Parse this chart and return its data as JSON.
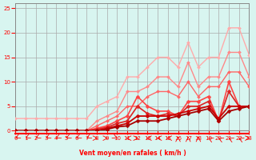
{
  "xlabel": "Vent moyen/en rafales ( km/h )",
  "ylabel": "",
  "bg_color": "#d8f5f0",
  "grid_color": "#aaaaaa",
  "xlim": [
    0,
    23
  ],
  "ylim": [
    0,
    26
  ],
  "xticks": [
    0,
    1,
    2,
    3,
    4,
    5,
    6,
    7,
    8,
    9,
    10,
    11,
    12,
    13,
    14,
    15,
    16,
    17,
    18,
    19,
    20,
    21,
    22,
    23
  ],
  "yticks": [
    0,
    5,
    10,
    15,
    20,
    25
  ],
  "lines": [
    {
      "color": "#ffaaaa",
      "alpha": 1.0,
      "lw": 1.0,
      "marker": "D",
      "markersize": 2,
      "x": [
        0,
        1,
        2,
        3,
        4,
        5,
        6,
        7,
        8,
        9,
        10,
        11,
        12,
        13,
        14,
        15,
        16,
        17,
        18,
        19,
        20,
        21,
        22,
        23
      ],
      "y": [
        2.5,
        2.5,
        2.5,
        2.5,
        2.5,
        2.5,
        2.5,
        2.5,
        5,
        6,
        7,
        11,
        11,
        13,
        15,
        15,
        13,
        18,
        13,
        15,
        15,
        21,
        21,
        15.5
      ]
    },
    {
      "color": "#ff8888",
      "alpha": 1.0,
      "lw": 1.0,
      "marker": "D",
      "markersize": 2,
      "x": [
        0,
        1,
        2,
        3,
        4,
        5,
        6,
        7,
        8,
        9,
        10,
        11,
        12,
        13,
        14,
        15,
        16,
        17,
        18,
        19,
        20,
        21,
        22,
        23
      ],
      "y": [
        0,
        0,
        0,
        0,
        0,
        0,
        0,
        0,
        2,
        3,
        4,
        8,
        8,
        9,
        11,
        11,
        9,
        14,
        9,
        11,
        11,
        16,
        16,
        11
      ]
    },
    {
      "color": "#ff6666",
      "alpha": 1.0,
      "lw": 1.0,
      "marker": "D",
      "markersize": 2,
      "x": [
        0,
        1,
        2,
        3,
        4,
        5,
        6,
        7,
        8,
        9,
        10,
        11,
        12,
        13,
        14,
        15,
        16,
        17,
        18,
        19,
        20,
        21,
        22,
        23
      ],
      "y": [
        0,
        0,
        0,
        0,
        0,
        0,
        0,
        0,
        1,
        2,
        3,
        5,
        5,
        7,
        8,
        8,
        7,
        10,
        7,
        9,
        9,
        12,
        12,
        9
      ]
    },
    {
      "color": "#ff4444",
      "alpha": 1.0,
      "lw": 1.2,
      "marker": "D",
      "markersize": 2.5,
      "x": [
        0,
        1,
        2,
        3,
        4,
        5,
        6,
        7,
        8,
        9,
        10,
        11,
        12,
        13,
        14,
        15,
        16,
        17,
        18,
        19,
        20,
        21,
        22,
        23
      ],
      "y": [
        0,
        0,
        0,
        0,
        0,
        0,
        0,
        0,
        0.5,
        1,
        2,
        3,
        7,
        5,
        4,
        4,
        3,
        6,
        6,
        7,
        2,
        10,
        5,
        5
      ]
    },
    {
      "color": "#dd2222",
      "alpha": 1.0,
      "lw": 1.2,
      "marker": "D",
      "markersize": 2.5,
      "x": [
        0,
        1,
        2,
        3,
        4,
        5,
        6,
        7,
        8,
        9,
        10,
        11,
        12,
        13,
        14,
        15,
        16,
        17,
        18,
        19,
        20,
        21,
        22,
        23
      ],
      "y": [
        0,
        0,
        0,
        0,
        0,
        0,
        0,
        0,
        0.3,
        0.7,
        1.5,
        2,
        5,
        3.5,
        3,
        3.5,
        3,
        5,
        5,
        6,
        2,
        8,
        5,
        5
      ]
    },
    {
      "color": "#cc0000",
      "alpha": 1.0,
      "lw": 1.3,
      "marker": "D",
      "markersize": 2.5,
      "x": [
        0,
        1,
        2,
        3,
        4,
        5,
        6,
        7,
        8,
        9,
        10,
        11,
        12,
        13,
        14,
        15,
        16,
        17,
        18,
        19,
        20,
        21,
        22,
        23
      ],
      "y": [
        0,
        0,
        0,
        0,
        0,
        0,
        0,
        0,
        0,
        0.5,
        1,
        1.5,
        3,
        3,
        3,
        3,
        3.5,
        4,
        4.5,
        5,
        2.5,
        5,
        5,
        5
      ]
    },
    {
      "color": "#aa0000",
      "alpha": 1.0,
      "lw": 1.3,
      "marker": "D",
      "markersize": 2.5,
      "x": [
        0,
        1,
        2,
        3,
        4,
        5,
        6,
        7,
        8,
        9,
        10,
        11,
        12,
        13,
        14,
        15,
        16,
        17,
        18,
        19,
        20,
        21,
        22,
        23
      ],
      "y": [
        0,
        0,
        0,
        0,
        0,
        0,
        0,
        0,
        0,
        0.3,
        0.8,
        1,
        2,
        2,
        2,
        2.5,
        3,
        3.5,
        4,
        4.5,
        2,
        4,
        4.5,
        5
      ]
    }
  ],
  "wind_arrows": {
    "x": [
      0,
      1,
      2,
      3,
      4,
      5,
      6,
      7,
      8,
      9,
      10,
      11,
      12,
      13,
      14,
      15,
      16,
      17,
      18,
      19,
      20,
      21,
      22,
      23
    ],
    "angles": [
      225,
      225,
      225,
      225,
      225,
      225,
      225,
      225,
      90,
      90,
      135,
      270,
      90,
      270,
      270,
      270,
      0,
      0,
      0,
      315,
      315,
      315,
      315,
      90
    ]
  }
}
